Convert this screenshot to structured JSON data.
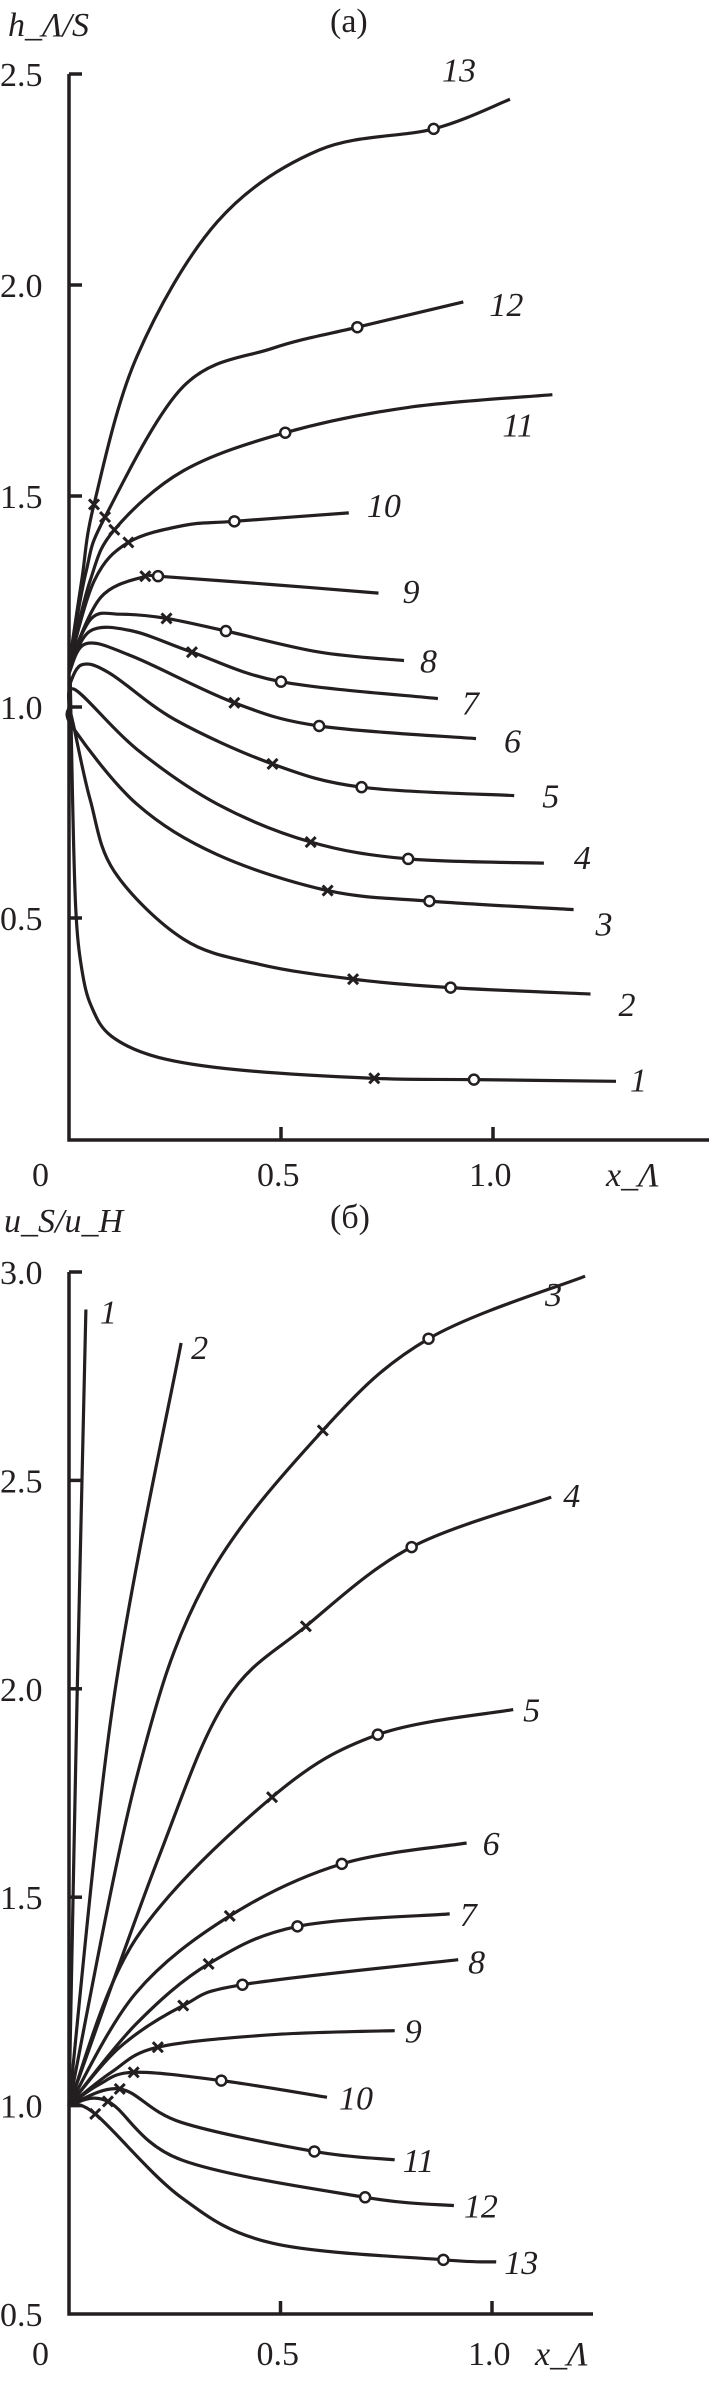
{
  "chart_data": [
    {
      "type": "line",
      "title": "(a)",
      "ylabel": "h_Λ/S",
      "xlabel": "x_Λ",
      "xlim": [
        0,
        1.5
      ],
      "ylim": [
        0,
        2.5
      ],
      "xticks": [
        "0",
        "0.5",
        "1.0"
      ],
      "yticks": [
        "0.5",
        "1.0",
        "1.5",
        "2.0",
        "2.5"
      ],
      "grid": false,
      "series": [
        {
          "name": "1",
          "points": [
            [
              0,
              1.0
            ],
            [
              0.003,
              1.06
            ],
            [
              0.008,
              0.8
            ],
            [
              0.016,
              0.52
            ],
            [
              0.03,
              0.38
            ],
            [
              0.053,
              0.29
            ],
            [
              0.1,
              0.22
            ],
            [
              0.21,
              0.17
            ],
            [
              0.4,
              0.14
            ],
            [
              0.72,
              0.12
            ],
            [
              0.955,
              0.117
            ],
            [
              1.29,
              0.113
            ]
          ],
          "x_marker": [
            0.72,
            0.12
          ],
          "o_marker": [
            0.955,
            0.117
          ]
        },
        {
          "name": "2",
          "points": [
            [
              0,
              1.0
            ],
            [
              0.01,
              0.96
            ],
            [
              0.05,
              0.78
            ],
            [
              0.107,
              0.61
            ],
            [
              0.27,
              0.45
            ],
            [
              0.45,
              0.39
            ],
            [
              0.67,
              0.355
            ],
            [
              0.9,
              0.335
            ],
            [
              1.23,
              0.32
            ]
          ],
          "x_marker": [
            0.67,
            0.355
          ],
          "o_marker": [
            0.9,
            0.335
          ]
        },
        {
          "name": "3",
          "points": [
            [
              0,
              1.0
            ],
            [
              0.01,
              0.95
            ],
            [
              0.16,
              0.77
            ],
            [
              0.35,
              0.65
            ],
            [
              0.61,
              0.565
            ],
            [
              0.85,
              0.54
            ],
            [
              1.19,
              0.52
            ]
          ],
          "x_marker": [
            0.61,
            0.565
          ],
          "o_marker": [
            0.85,
            0.54
          ]
        },
        {
          "name": "4",
          "points": [
            [
              0,
              1.0
            ],
            [
              0.016,
              1.04
            ],
            [
              0.16,
              0.9
            ],
            [
              0.35,
              0.77
            ],
            [
              0.57,
              0.68
            ],
            [
              0.8,
              0.64
            ],
            [
              1.12,
              0.63
            ]
          ],
          "x_marker": [
            0.57,
            0.68
          ],
          "o_marker": [
            0.8,
            0.64
          ]
        },
        {
          "name": "5",
          "points": [
            [
              0,
              1.05
            ],
            [
              0.03,
              1.1
            ],
            [
              0.096,
              1.08
            ],
            [
              0.25,
              0.97
            ],
            [
              0.48,
              0.865
            ],
            [
              0.69,
              0.81
            ],
            [
              1.05,
              0.79
            ]
          ],
          "x_marker": [
            0.48,
            0.865
          ],
          "o_marker": [
            0.69,
            0.81
          ]
        },
        {
          "name": "6",
          "points": [
            [
              0,
              1.08
            ],
            [
              0.04,
              1.15
            ],
            [
              0.15,
              1.12
            ],
            [
              0.39,
              1.01
            ],
            [
              0.59,
              0.955
            ],
            [
              0.96,
              0.925
            ]
          ],
          "x_marker": [
            0.39,
            1.01
          ],
          "o_marker": [
            0.59,
            0.955
          ]
        },
        {
          "name": "7",
          "points": [
            [
              0,
              1.09
            ],
            [
              0.05,
              1.18
            ],
            [
              0.15,
              1.18
            ],
            [
              0.29,
              1.13
            ],
            [
              0.5,
              1.06
            ],
            [
              0.87,
              1.02
            ]
          ],
          "x_marker": [
            0.29,
            1.13
          ],
          "o_marker": [
            0.5,
            1.06
          ]
        },
        {
          "name": "8",
          "points": [
            [
              0,
              1.1
            ],
            [
              0.053,
              1.21
            ],
            [
              0.12,
              1.22
            ],
            [
              0.23,
              1.21
            ],
            [
              0.37,
              1.18
            ],
            [
              0.59,
              1.13
            ],
            [
              0.79,
              1.11
            ]
          ],
          "x_marker": [
            0.23,
            1.21
          ],
          "o_marker": [
            0.37,
            1.18
          ]
        },
        {
          "name": "9",
          "points": [
            [
              0,
              1.1
            ],
            [
              0.075,
              1.26
            ],
            [
              0.18,
              1.31
            ],
            [
              0.21,
              1.31
            ],
            [
              0.48,
              1.29
            ],
            [
              0.73,
              1.27
            ]
          ],
          "x_marker": [
            0.18,
            1.31
          ],
          "o_marker": [
            0.21,
            1.31
          ]
        },
        {
          "name": "10",
          "points": [
            [
              0,
              1.1
            ],
            [
              0.06,
              1.3
            ],
            [
              0.14,
              1.39
            ],
            [
              0.27,
              1.43
            ],
            [
              0.39,
              1.44
            ],
            [
              0.66,
              1.46
            ]
          ],
          "x_marker": [
            0.14,
            1.39
          ],
          "o_marker": [
            0.39,
            1.44
          ]
        },
        {
          "name": "11",
          "points": [
            [
              0,
              1.1
            ],
            [
              0.05,
              1.3
            ],
            [
              0.107,
              1.42
            ],
            [
              0.27,
              1.56
            ],
            [
              0.51,
              1.65
            ],
            [
              0.8,
              1.71
            ],
            [
              1.14,
              1.74
            ]
          ],
          "x_marker": [
            0.107,
            1.42
          ],
          "o_marker": [
            0.51,
            1.65
          ]
        },
        {
          "name": "12",
          "points": [
            [
              0,
              1.1
            ],
            [
              0.04,
              1.32
            ],
            [
              0.085,
              1.45
            ],
            [
              0.27,
              1.76
            ],
            [
              0.48,
              1.85
            ],
            [
              0.68,
              1.9
            ],
            [
              0.93,
              1.96
            ]
          ],
          "x_marker": [
            0.085,
            1.45
          ],
          "o_marker": [
            0.68,
            1.9
          ]
        },
        {
          "name": "13",
          "points": [
            [
              0,
              1.1
            ],
            [
              0.03,
              1.3
            ],
            [
              0.059,
              1.48
            ],
            [
              0.16,
              1.83
            ],
            [
              0.35,
              2.15
            ],
            [
              0.59,
              2.32
            ],
            [
              0.86,
              2.37
            ],
            [
              1.04,
              2.44
            ]
          ],
          "x_marker": [
            0.059,
            1.48
          ],
          "o_marker": [
            0.86,
            2.37
          ]
        }
      ]
    },
    {
      "type": "line",
      "title": "(б)",
      "ylabel": "u_S/u_H",
      "xlabel": "x_Λ",
      "xlim": [
        0,
        1.25
      ],
      "ylim": [
        0.5,
        3.0
      ],
      "xticks": [
        "0",
        "0.5",
        "1.0"
      ],
      "yticks": [
        "0.5",
        "1.0",
        "1.5",
        "2.0",
        "2.5",
        "3.0"
      ],
      "grid": false,
      "series": [
        {
          "name": "1",
          "points": [
            [
              0,
              1.0
            ],
            [
              0.019,
              1.97
            ],
            [
              0.04,
              2.91
            ]
          ]
        },
        {
          "name": "2",
          "points": [
            [
              0,
              1.0
            ],
            [
              0.105,
              1.97
            ],
            [
              0.265,
              2.83
            ]
          ]
        },
        {
          "name": "3",
          "points": [
            [
              0,
              1.0
            ],
            [
              0.158,
              1.78
            ],
            [
              0.32,
              2.25
            ],
            [
              0.6,
              2.62
            ],
            [
              0.85,
              2.84
            ],
            [
              1.22,
              2.99
            ]
          ],
          "x_marker": [
            0.6,
            2.62
          ],
          "o_marker": [
            0.85,
            2.84
          ]
        },
        {
          "name": "4",
          "points": [
            [
              0,
              1.0
            ],
            [
              0.21,
              1.59
            ],
            [
              0.37,
              1.97
            ],
            [
              0.56,
              2.15
            ],
            [
              0.81,
              2.34
            ],
            [
              1.14,
              2.46
            ]
          ],
          "x_marker": [
            0.56,
            2.15
          ],
          "o_marker": [
            0.81,
            2.34
          ]
        },
        {
          "name": "5",
          "points": [
            [
              0,
              1.0
            ],
            [
              0.158,
              1.4
            ],
            [
              0.48,
              1.74
            ],
            [
              0.73,
              1.89
            ],
            [
              1.05,
              1.95
            ]
          ],
          "x_marker": [
            0.48,
            1.74
          ],
          "o_marker": [
            0.73,
            1.89
          ]
        },
        {
          "name": "6",
          "points": [
            [
              0,
              1.0
            ],
            [
              0.158,
              1.27
            ],
            [
              0.38,
              1.455
            ],
            [
              0.645,
              1.58
            ],
            [
              0.94,
              1.63
            ]
          ],
          "x_marker": [
            0.38,
            1.455
          ],
          "o_marker": [
            0.645,
            1.58
          ]
        },
        {
          "name": "7",
          "points": [
            [
              0,
              1.0
            ],
            [
              0.158,
              1.195
            ],
            [
              0.33,
              1.34
            ],
            [
              0.54,
              1.43
            ],
            [
              0.9,
              1.46
            ]
          ],
          "x_marker": [
            0.33,
            1.34
          ],
          "o_marker": [
            0.54,
            1.43
          ]
        },
        {
          "name": "8",
          "points": [
            [
              0,
              1.0
            ],
            [
              0.12,
              1.14
            ],
            [
              0.27,
              1.24
            ],
            [
              0.41,
              1.29
            ],
            [
              0.92,
              1.35
            ]
          ],
          "x_marker": [
            0.27,
            1.24
          ],
          "o_marker": [
            0.41,
            1.29
          ]
        },
        {
          "name": "9",
          "points": [
            [
              0,
              1.0
            ],
            [
              0.1,
              1.08
            ],
            [
              0.21,
              1.14
            ],
            [
              0.48,
              1.17
            ],
            [
              0.77,
              1.18
            ]
          ],
          "x_marker": [
            0.21,
            1.14
          ]
        },
        {
          "name": "10",
          "points": [
            [
              0,
              1.0
            ],
            [
              0.07,
              1.05
            ],
            [
              0.153,
              1.08
            ],
            [
              0.36,
              1.06
            ],
            [
              0.61,
              1.02
            ]
          ],
          "x_marker": [
            0.153,
            1.08
          ],
          "o_marker": [
            0.36,
            1.06
          ]
        },
        {
          "name": "11",
          "points": [
            [
              0,
              1.0
            ],
            [
              0.12,
              1.04
            ],
            [
              0.265,
              0.96
            ],
            [
              0.58,
              0.89
            ],
            [
              0.77,
              0.87
            ]
          ],
          "x_marker": [
            0.12,
            1.04
          ],
          "o_marker": [
            0.58,
            0.89
          ]
        },
        {
          "name": "12",
          "points": [
            [
              0,
              1.0
            ],
            [
              0.092,
              1.01
            ],
            [
              0.265,
              0.87
            ],
            [
              0.7,
              0.78
            ],
            [
              0.91,
              0.76
            ]
          ],
          "x_marker": [
            0.092,
            1.01
          ],
          "o_marker": [
            0.7,
            0.78
          ]
        },
        {
          "name": "13",
          "points": [
            [
              0,
              1.0
            ],
            [
              0.062,
              0.98
            ],
            [
              0.265,
              0.78
            ],
            [
              0.48,
              0.67
            ],
            [
              0.885,
              0.63
            ],
            [
              1.01,
              0.625
            ]
          ],
          "x_marker": [
            0.062,
            0.98
          ],
          "o_marker": [
            0.885,
            0.63
          ]
        }
      ]
    }
  ]
}
